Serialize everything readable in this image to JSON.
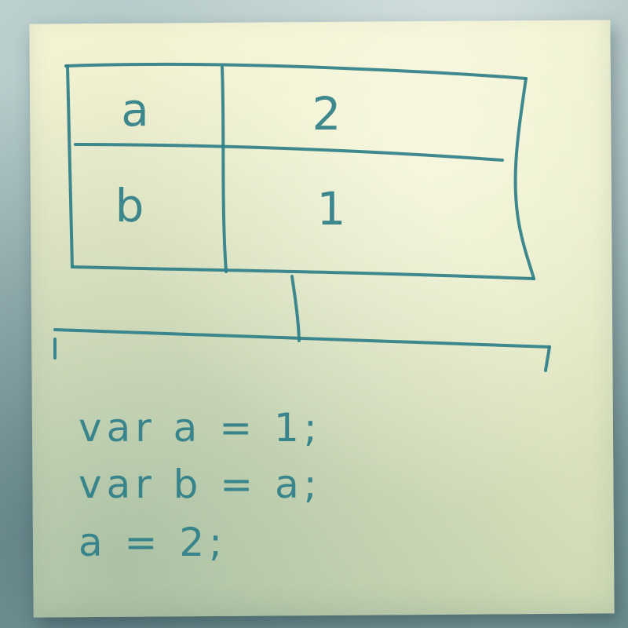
{
  "table": {
    "rows": [
      {
        "name": "a",
        "value": "2"
      },
      {
        "name": "b",
        "value": "1"
      }
    ]
  },
  "code": {
    "lines": [
      "var a = 1;",
      "var b = a;",
      "a = 2;"
    ]
  },
  "colors": {
    "ink": "#2f7f88",
    "note": "#f1f1d0",
    "background": "#9fb9b9"
  }
}
